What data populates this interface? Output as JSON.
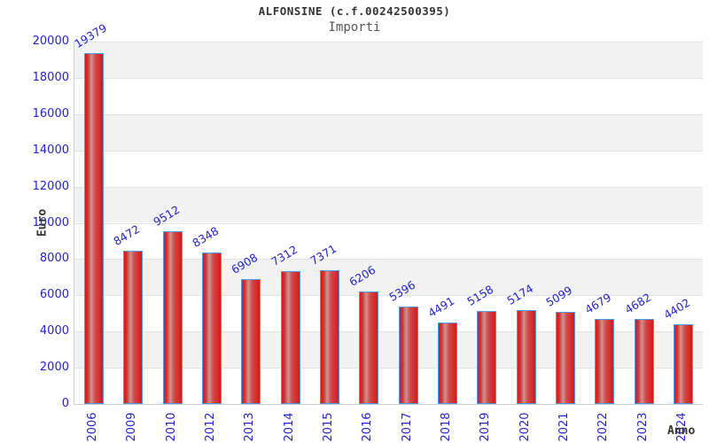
{
  "header": {
    "title": "ALFONSINE (c.f.00242500395)",
    "subtitle": "Importi"
  },
  "chart_data": {
    "type": "bar",
    "title": "ALFONSINE (c.f.00242500395)",
    "subtitle": "Importi",
    "xlabel": "Anno",
    "ylabel": "Euro",
    "categories": [
      "2006",
      "2009",
      "2010",
      "2012",
      "2013",
      "2014",
      "2015",
      "2016",
      "2017",
      "2018",
      "2019",
      "2020",
      "2021",
      "2022",
      "2023",
      "2024"
    ],
    "values": [
      19379,
      8472,
      9512,
      8348,
      6908,
      7312,
      7371,
      6206,
      5396,
      4491,
      5158,
      5174,
      5099,
      4679,
      4682,
      4402
    ],
    "ylim": [
      0,
      20000
    ],
    "yticks": [
      0,
      2000,
      4000,
      6000,
      8000,
      10000,
      12000,
      14000,
      16000,
      18000,
      20000
    ],
    "grid": true,
    "legend_position": "none",
    "alternating_bands": true,
    "colors": {
      "bar_fill": "#e01515",
      "bar_border": "#4e9ce8",
      "tick_text": "#2323c8",
      "value_label_text": "#2323c8",
      "band_gray": "#f2f2f2",
      "grid_line": "#e2e2e2",
      "title_text": "#333333",
      "subtitle_text": "#555555",
      "axis_label_text": "#333333"
    }
  }
}
